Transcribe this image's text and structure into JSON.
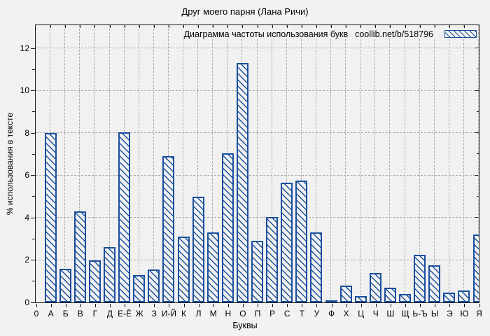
{
  "title": "Друг моего парня (Лана Ричи)",
  "legend": {
    "label": "Диаграмма частоты использования букв",
    "source": "coollib.net/b/518796"
  },
  "chart_data": {
    "type": "bar",
    "title": "Друг моего парня (Лана Ричи)",
    "xlabel": "Буквы",
    "ylabel": "% использования в тексте",
    "origin_label": "0",
    "categories": [
      "А",
      "Б",
      "В",
      "Г",
      "Д",
      "Е-Ё",
      "Ж",
      "З",
      "И-Й",
      "К",
      "Л",
      "М",
      "Н",
      "О",
      "П",
      "Р",
      "С",
      "Т",
      "У",
      "Ф",
      "Х",
      "Ц",
      "Ч",
      "Ш",
      "Щ",
      "Ь-Ъ",
      "Ы",
      "Э",
      "Ю",
      "Я"
    ],
    "values": [
      8.0,
      1.6,
      4.3,
      2.0,
      2.6,
      8.05,
      1.3,
      1.55,
      6.9,
      3.1,
      5.0,
      3.3,
      7.05,
      11.3,
      2.9,
      4.05,
      5.65,
      5.75,
      3.3,
      0.1,
      0.8,
      0.3,
      1.4,
      0.7,
      0.4,
      2.25,
      1.75,
      0.45,
      0.55,
      3.2
    ],
    "ylim": [
      0,
      13.1
    ],
    "yticks": [
      0,
      2,
      4,
      6,
      8,
      10,
      12
    ],
    "yticks_minor": [
      1,
      3,
      5,
      7,
      9,
      11
    ],
    "grid": true,
    "legend_position": "top-right",
    "hatch": "\\",
    "bar_color": "#1a4f9e",
    "grid_color": "#a9a9a9",
    "background_color": "#f2f2f2",
    "plot_background_color": "#f1f1f1",
    "axis_color": "#1a1a1a"
  }
}
